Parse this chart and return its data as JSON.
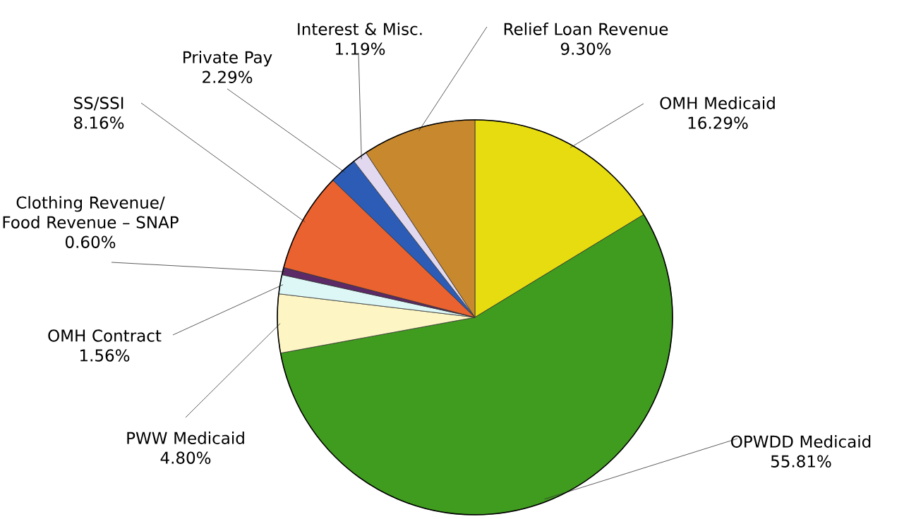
{
  "chart_data": {
    "type": "pie",
    "categories": [
      "OMH Medicaid",
      "OPWDD Medicaid",
      "PWW Medicaid",
      "OMH Contract",
      "Clothing Revenue/ Food Revenue – SNAP",
      "SS/SSI",
      "Private Pay",
      "Interest & Misc.",
      "Relief Loan Revenue"
    ],
    "values": [
      16.29,
      55.81,
      4.8,
      1.56,
      0.6,
      8.16,
      2.29,
      1.19,
      9.3
    ],
    "value_labels": [
      "16.29%",
      "55.81%",
      "4.80%",
      "1.56%",
      "0.60%",
      "8.16%",
      "2.29%",
      "1.19%",
      "9.30%"
    ],
    "colors": [
      "#e6dc10",
      "#3f9c1e",
      "#fdf6c4",
      "#ddf6f6",
      "#5c2a66",
      "#ea6230",
      "#2c5cb6",
      "#e2d8f0",
      "#c8892e"
    ]
  }
}
